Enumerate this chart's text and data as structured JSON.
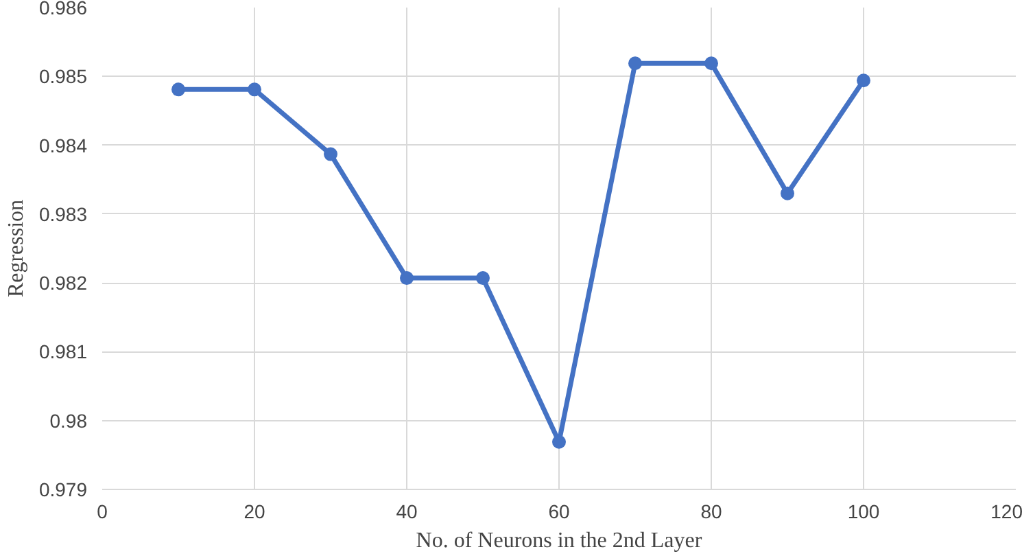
{
  "chart_data": {
    "type": "line",
    "xlabel": "No. of Neurons in the 2nd Layer",
    "ylabel": "Regression",
    "x": [
      10,
      20,
      30,
      40,
      50,
      60,
      70,
      80,
      90,
      100
    ],
    "series": [
      {
        "color": "#4472c4",
        "values": [
          0.98481,
          0.98481,
          0.98387,
          0.98207,
          0.98207,
          0.97969,
          0.98519,
          0.98519,
          0.9833,
          0.98494
        ]
      }
    ],
    "xlim": [
      0,
      120
    ],
    "xticks": [
      0,
      20,
      40,
      60,
      80,
      100,
      120
    ],
    "ylim": [
      0.979,
      0.986
    ],
    "yticks": [
      0.979,
      0.98,
      0.981,
      0.982,
      0.983,
      0.984,
      0.985,
      0.986
    ],
    "grid": true,
    "marker": "circle",
    "line_style": "solid"
  }
}
